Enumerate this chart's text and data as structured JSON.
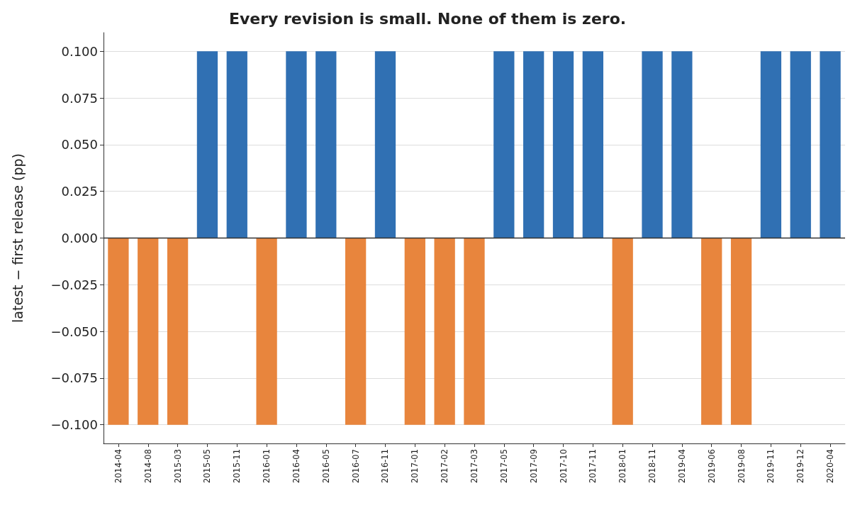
{
  "chart_data": {
    "type": "bar",
    "title": "Every revision is small. None of them is zero.",
    "ylabel": "latest − first release (pp)",
    "categories": [
      "2014-04",
      "2014-08",
      "2015-03",
      "2015-05",
      "2015-11",
      "2016-01",
      "2016-04",
      "2016-05",
      "2016-07",
      "2016-11",
      "2017-01",
      "2017-02",
      "2017-03",
      "2017-05",
      "2017-09",
      "2017-10",
      "2017-11",
      "2018-01",
      "2018-11",
      "2019-04",
      "2019-06",
      "2019-08",
      "2019-11",
      "2019-12",
      "2020-04"
    ],
    "values": [
      -0.1,
      -0.1,
      -0.1,
      0.1,
      0.1,
      -0.1,
      0.1,
      0.1,
      -0.1,
      0.1,
      -0.1,
      -0.1,
      -0.1,
      0.1,
      0.1,
      0.1,
      0.1,
      -0.1,
      0.1,
      0.1,
      -0.1,
      -0.1,
      0.1,
      0.1,
      0.1
    ],
    "colors": [
      "#e8853d",
      "#e8853d",
      "#e8853d",
      "#3070b3",
      "#3070b3",
      "#e8853d",
      "#3070b3",
      "#3070b3",
      "#e8853d",
      "#3070b3",
      "#e8853d",
      "#e8853d",
      "#e8853d",
      "#3070b3",
      "#3070b3",
      "#3070b3",
      "#3070b3",
      "#e8853d",
      "#3070b3",
      "#3070b3",
      "#e8853d",
      "#e8853d",
      "#3070b3",
      "#3070b3",
      "#3070b3"
    ],
    "ylim": [
      -0.11,
      0.11
    ],
    "yticks": [
      {
        "value": -0.1,
        "label": "−0.100"
      },
      {
        "value": -0.075,
        "label": "−0.075"
      },
      {
        "value": -0.05,
        "label": "−0.050"
      },
      {
        "value": -0.025,
        "label": "−0.025"
      },
      {
        "value": 0,
        "label": "0.000"
      },
      {
        "value": 0.025,
        "label": "0.025"
      },
      {
        "value": 0.05,
        "label": "0.050"
      },
      {
        "value": 0.075,
        "label": "0.075"
      },
      {
        "value": 0.1,
        "label": "0.100"
      }
    ],
    "ref_lines": [
      {
        "axis": "y",
        "value": 0,
        "color": "#333333"
      }
    ],
    "grid": "y"
  }
}
